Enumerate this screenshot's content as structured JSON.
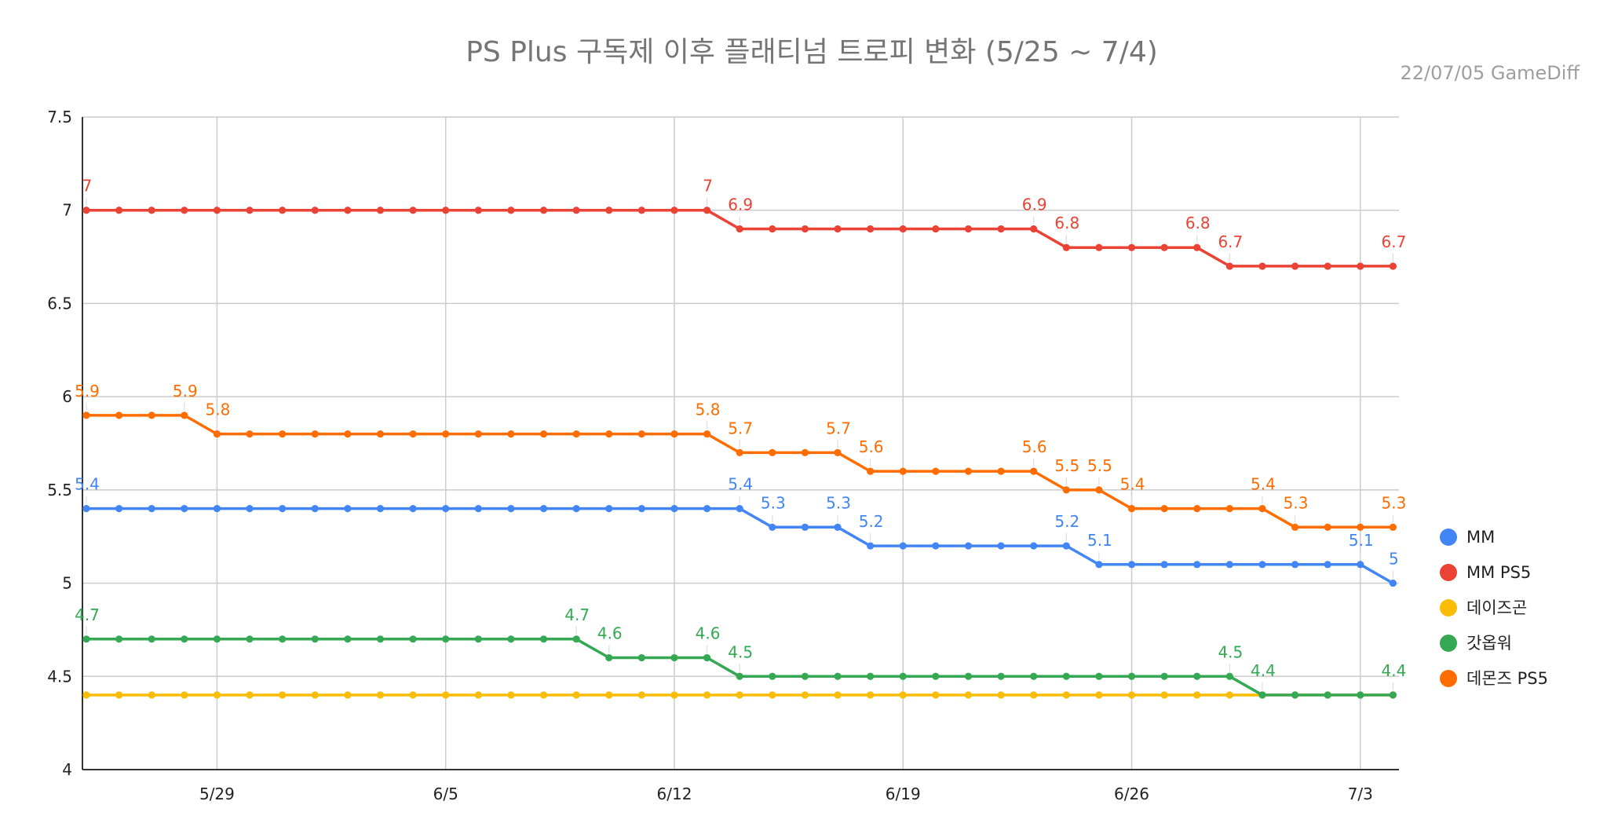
{
  "chart_data": {
    "type": "line",
    "title": "PS Plus 구독제 이후 플래티넘 트로피 변화 (5/25 ~ 7/4)",
    "subtitle": "22/07/05  GameDiff",
    "xlabel": "",
    "ylabel": "",
    "ylim": [
      4,
      7.5
    ],
    "yticks": [
      "4",
      "4.5",
      "5",
      "5.5",
      "6",
      "6.5",
      "7",
      "7.5"
    ],
    "x_start": "5/25",
    "x_end": "7/4",
    "xticks": [
      {
        "label": "5/29",
        "day": 4
      },
      {
        "label": "6/5",
        "day": 11
      },
      {
        "label": "6/12",
        "day": 18
      },
      {
        "label": "6/19",
        "day": 25
      },
      {
        "label": "6/26",
        "day": 32
      },
      {
        "label": "7/3",
        "day": 39
      }
    ],
    "grid": true,
    "legend_position": "right",
    "series": [
      {
        "name": "MM",
        "color": "#4285f4",
        "values": [
          5.4,
          5.4,
          5.4,
          5.4,
          5.4,
          5.4,
          5.4,
          5.4,
          5.4,
          5.4,
          5.4,
          5.4,
          5.4,
          5.4,
          5.4,
          5.4,
          5.4,
          5.4,
          5.4,
          5.4,
          5.4,
          5.3,
          5.3,
          5.3,
          5.2,
          5.2,
          5.2,
          5.2,
          5.2,
          5.2,
          5.2,
          5.1,
          5.1,
          5.1,
          5.1,
          5.1,
          5.1,
          5.1,
          5.1,
          5.1,
          5.0
        ],
        "labels": [
          {
            "i": 0,
            "text": "5.4"
          },
          {
            "i": 20,
            "text": "5.4"
          },
          {
            "i": 21,
            "text": "5.3"
          },
          {
            "i": 23,
            "text": "5.3"
          },
          {
            "i": 24,
            "text": "5.2"
          },
          {
            "i": 30,
            "text": "5.2"
          },
          {
            "i": 31,
            "text": "5.1"
          },
          {
            "i": 39,
            "text": "5.1"
          },
          {
            "i": 40,
            "text": "5"
          }
        ]
      },
      {
        "name": "MM PS5",
        "color": "#ea4335",
        "values": [
          7,
          7,
          7,
          7,
          7,
          7,
          7,
          7,
          7,
          7,
          7,
          7,
          7,
          7,
          7,
          7,
          7,
          7,
          7,
          7,
          6.9,
          6.9,
          6.9,
          6.9,
          6.9,
          6.9,
          6.9,
          6.9,
          6.9,
          6.9,
          6.8,
          6.8,
          6.8,
          6.8,
          6.8,
          6.7,
          6.7,
          6.7,
          6.7,
          6.7,
          6.7
        ],
        "labels": [
          {
            "i": 0,
            "text": "7"
          },
          {
            "i": 19,
            "text": "7"
          },
          {
            "i": 20,
            "text": "6.9"
          },
          {
            "i": 29,
            "text": "6.9"
          },
          {
            "i": 30,
            "text": "6.8"
          },
          {
            "i": 34,
            "text": "6.8"
          },
          {
            "i": 35,
            "text": "6.7"
          },
          {
            "i": 40,
            "text": "6.7"
          }
        ]
      },
      {
        "name": "데이즈곤",
        "color": "#fbbc04",
        "values": [
          4.4,
          4.4,
          4.4,
          4.4,
          4.4,
          4.4,
          4.4,
          4.4,
          4.4,
          4.4,
          4.4,
          4.4,
          4.4,
          4.4,
          4.4,
          4.4,
          4.4,
          4.4,
          4.4,
          4.4,
          4.4,
          4.4,
          4.4,
          4.4,
          4.4,
          4.4,
          4.4,
          4.4,
          4.4,
          4.4,
          4.4,
          4.4,
          4.4,
          4.4,
          4.4,
          4.4,
          4.4,
          4.4,
          4.4,
          4.4,
          4.4
        ],
        "labels": []
      },
      {
        "name": "갓옵워",
        "color": "#34a853",
        "values": [
          4.7,
          4.7,
          4.7,
          4.7,
          4.7,
          4.7,
          4.7,
          4.7,
          4.7,
          4.7,
          4.7,
          4.7,
          4.7,
          4.7,
          4.7,
          4.7,
          4.6,
          4.6,
          4.6,
          4.6,
          4.5,
          4.5,
          4.5,
          4.5,
          4.5,
          4.5,
          4.5,
          4.5,
          4.5,
          4.5,
          4.5,
          4.5,
          4.5,
          4.5,
          4.5,
          4.5,
          4.4,
          4.4,
          4.4,
          4.4,
          4.4
        ],
        "labels": [
          {
            "i": 0,
            "text": "4.7"
          },
          {
            "i": 15,
            "text": "4.7"
          },
          {
            "i": 16,
            "text": "4.6"
          },
          {
            "i": 19,
            "text": "4.6"
          },
          {
            "i": 20,
            "text": "4.5"
          },
          {
            "i": 35,
            "text": "4.5"
          },
          {
            "i": 36,
            "text": "4.4"
          },
          {
            "i": 40,
            "text": "4.4"
          }
        ]
      },
      {
        "name": "데몬즈 PS5",
        "color": "#ff6d01",
        "values": [
          5.9,
          5.9,
          5.9,
          5.9,
          5.8,
          5.8,
          5.8,
          5.8,
          5.8,
          5.8,
          5.8,
          5.8,
          5.8,
          5.8,
          5.8,
          5.8,
          5.8,
          5.8,
          5.8,
          5.8,
          5.7,
          5.7,
          5.7,
          5.7,
          5.6,
          5.6,
          5.6,
          5.6,
          5.6,
          5.6,
          5.5,
          5.5,
          5.4,
          5.4,
          5.4,
          5.4,
          5.4,
          5.3,
          5.3,
          5.3,
          5.3
        ],
        "labels": [
          {
            "i": 0,
            "text": "5.9"
          },
          {
            "i": 3,
            "text": "5.9"
          },
          {
            "i": 4,
            "text": "5.8"
          },
          {
            "i": 19,
            "text": "5.8"
          },
          {
            "i": 20,
            "text": "5.7"
          },
          {
            "i": 23,
            "text": "5.7"
          },
          {
            "i": 24,
            "text": "5.6"
          },
          {
            "i": 29,
            "text": "5.6"
          },
          {
            "i": 30,
            "text": "5.5"
          },
          {
            "i": 31,
            "text": "5.5"
          },
          {
            "i": 32,
            "text": "5.4"
          },
          {
            "i": 36,
            "text": "5.4"
          },
          {
            "i": 37,
            "text": "5.3"
          },
          {
            "i": 40,
            "text": "5.3"
          }
        ]
      }
    ]
  }
}
